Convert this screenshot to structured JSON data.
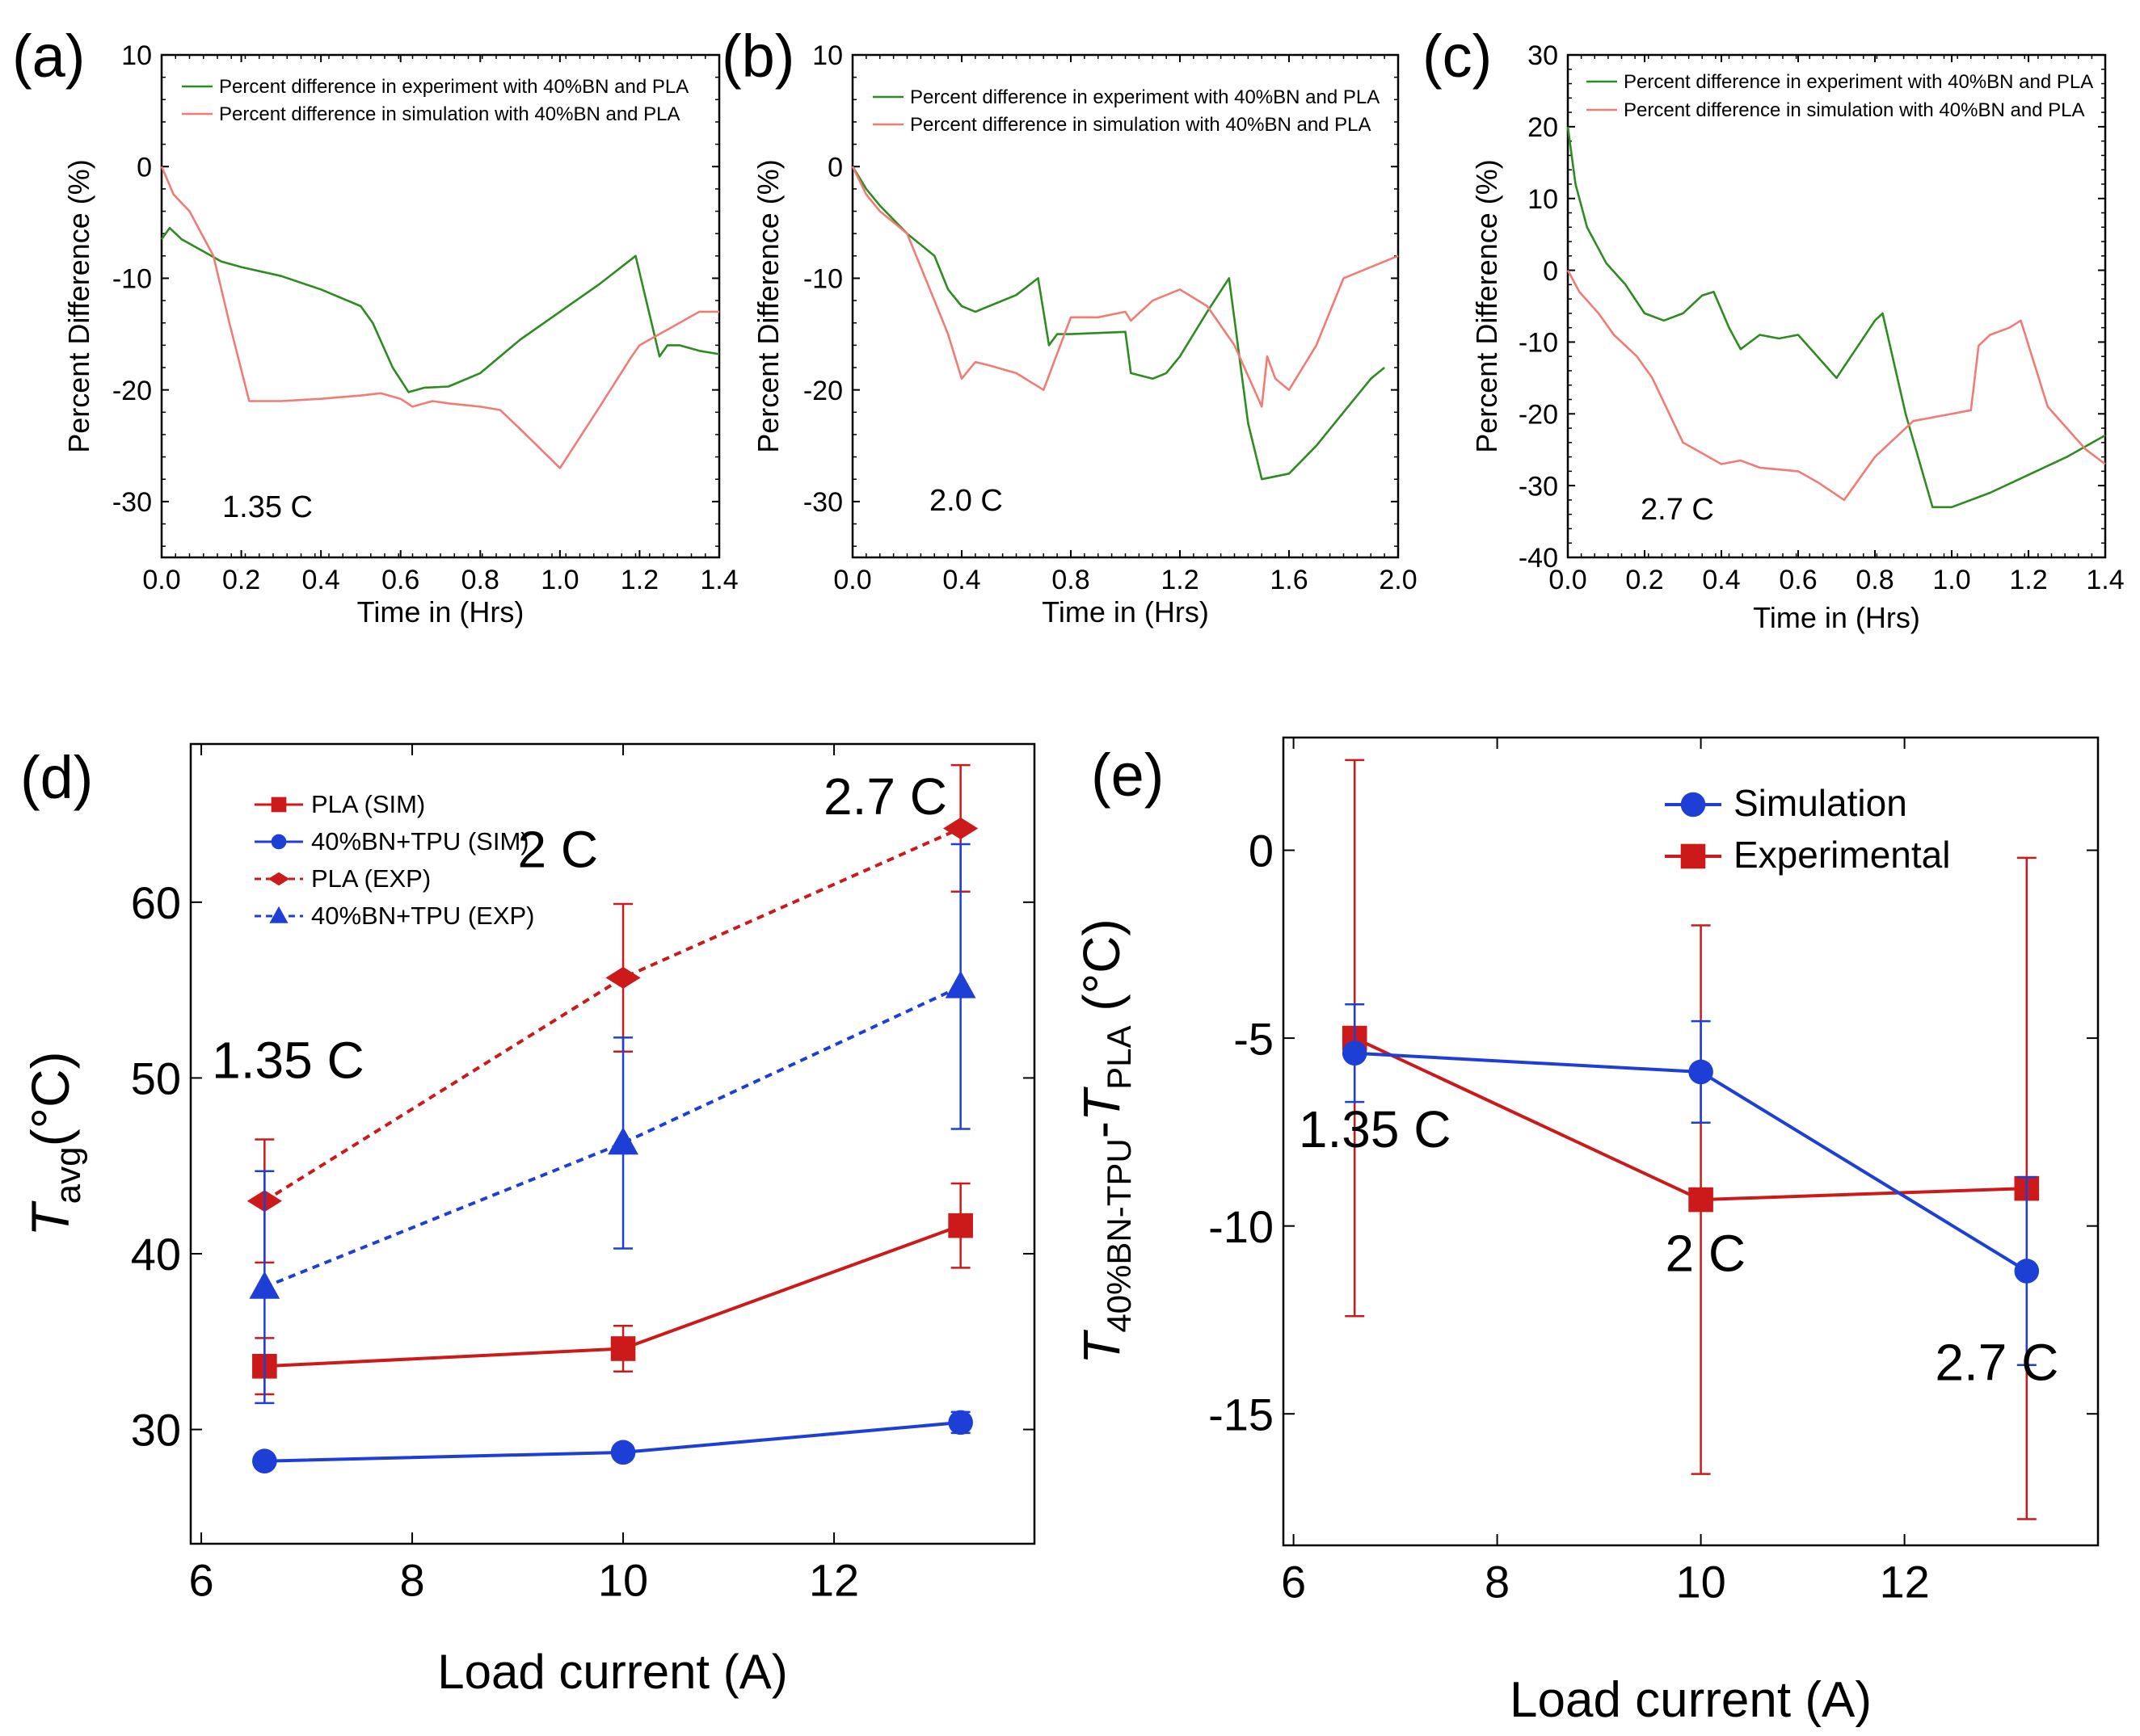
{
  "colors": {
    "green": "#2e8b22",
    "salmon": "#f07c76",
    "red": "#cc1a1a",
    "blue": "#1d3fd6",
    "axis": "#000000"
  },
  "chart_data": [
    {
      "id": "a",
      "panel_label": "(a)",
      "type": "line",
      "xlabel": "Time in (Hrs)",
      "ylabel": "Percent Difference (%)",
      "xlim": [
        0,
        1.4
      ],
      "ylim": [
        -35,
        10
      ],
      "xticks": [
        0.0,
        0.2,
        0.4,
        0.6,
        0.8,
        1.0,
        1.2,
        1.4
      ],
      "xtick_labels": [
        "0.0",
        "0.2",
        "0.4",
        "0.6",
        "0.8",
        "1.0",
        "1.2",
        "1.4"
      ],
      "yticks": [
        10,
        0,
        -10,
        -20,
        -30
      ],
      "ytick_labels": [
        "10",
        "0",
        "-10",
        "-20",
        "-30"
      ],
      "annotation": "1.35 C",
      "series": [
        {
          "name": "Percent difference in experiment with 40%BN and PLA",
          "color": "green",
          "x": [
            0.0,
            0.02,
            0.05,
            0.1,
            0.15,
            0.2,
            0.3,
            0.4,
            0.5,
            0.53,
            0.58,
            0.62,
            0.66,
            0.72,
            0.8,
            0.9,
            1.0,
            1.1,
            1.19,
            1.2,
            1.25,
            1.27,
            1.3,
            1.35,
            1.4
          ],
          "y": [
            -6.5,
            -5.5,
            -6.5,
            -7.5,
            -8.5,
            -9.0,
            -9.8,
            -11.0,
            -12.5,
            -14.0,
            -18.0,
            -20.2,
            -19.8,
            -19.7,
            -18.5,
            -15.5,
            -13.0,
            -10.5,
            -8.0,
            -9.5,
            -17.0,
            -16.0,
            -16.0,
            -16.5,
            -16.8
          ]
        },
        {
          "name": "Percent difference in simulation with 40%BN and PLA",
          "color": "salmon",
          "x": [
            0.0,
            0.03,
            0.07,
            0.1,
            0.13,
            0.17,
            0.22,
            0.3,
            0.4,
            0.5,
            0.55,
            0.6,
            0.63,
            0.68,
            0.72,
            0.8,
            0.85,
            0.9,
            1.0,
            1.1,
            1.18,
            1.2,
            1.3,
            1.35,
            1.4
          ],
          "y": [
            0.0,
            -2.5,
            -4.0,
            -6.0,
            -8.0,
            -14.0,
            -21.0,
            -21.0,
            -20.8,
            -20.5,
            -20.3,
            -20.8,
            -21.5,
            -21.0,
            -21.2,
            -21.5,
            -21.8,
            -23.5,
            -27.0,
            -21.5,
            -17.0,
            -16.0,
            -14.0,
            -13.0,
            -13.0
          ]
        }
      ]
    },
    {
      "id": "b",
      "panel_label": "(b)",
      "type": "line",
      "xlabel": "Time in (Hrs)",
      "ylabel": "Percent Difference (%)",
      "xlim": [
        0,
        2.0
      ],
      "ylim": [
        -35,
        10
      ],
      "xticks": [
        0.0,
        0.4,
        0.8,
        1.2,
        1.6,
        2.0
      ],
      "xtick_labels": [
        "0.0",
        "0.4",
        "0.8",
        "1.2",
        "1.6",
        "2.0"
      ],
      "yticks": [
        10,
        0,
        -10,
        -20,
        -30
      ],
      "ytick_labels": [
        "10",
        "0",
        "-10",
        "-20",
        "-30"
      ],
      "annotation": "2.0 C",
      "series": [
        {
          "name": "Percent difference in experiment with 40%BN and PLA",
          "color": "green",
          "x": [
            0.0,
            0.05,
            0.1,
            0.2,
            0.3,
            0.35,
            0.4,
            0.45,
            0.5,
            0.6,
            0.68,
            0.72,
            0.75,
            0.8,
            1.0,
            1.02,
            1.1,
            1.15,
            1.2,
            1.3,
            1.38,
            1.45,
            1.5,
            1.6,
            1.7,
            1.8,
            1.9,
            1.95
          ],
          "y": [
            0.0,
            -2.0,
            -3.5,
            -6.0,
            -8.0,
            -11.0,
            -12.5,
            -13.0,
            -12.5,
            -11.5,
            -10.0,
            -16.0,
            -15.0,
            -15.0,
            -14.8,
            -18.5,
            -19.0,
            -18.5,
            -17.0,
            -13.0,
            -10.0,
            -23.0,
            -28.0,
            -27.5,
            -25.0,
            -22.0,
            -19.0,
            -18.0
          ]
        },
        {
          "name": "Percent difference in simulation with 40%BN and PLA",
          "color": "salmon",
          "x": [
            0.0,
            0.05,
            0.1,
            0.15,
            0.2,
            0.3,
            0.35,
            0.4,
            0.45,
            0.5,
            0.6,
            0.7,
            0.8,
            0.9,
            1.0,
            1.02,
            1.1,
            1.2,
            1.3,
            1.4,
            1.5,
            1.52,
            1.55,
            1.6,
            1.7,
            1.8,
            1.9,
            2.0
          ],
          "y": [
            0.0,
            -2.5,
            -4.0,
            -5.0,
            -6.0,
            -12.0,
            -15.0,
            -19.0,
            -17.5,
            -17.8,
            -18.5,
            -20.0,
            -13.5,
            -13.5,
            -13.0,
            -13.8,
            -12.0,
            -11.0,
            -12.5,
            -16.0,
            -21.5,
            -17.0,
            -19.0,
            -20.0,
            -16.0,
            -10.0,
            -9.0,
            -8.0
          ]
        }
      ]
    },
    {
      "id": "c",
      "panel_label": "(c)",
      "type": "line",
      "xlabel": "Time in (Hrs)",
      "ylabel": "Percent Difference (%)",
      "xlim": [
        0,
        1.4
      ],
      "ylim": [
        -40,
        30
      ],
      "xticks": [
        0.0,
        0.2,
        0.4,
        0.6,
        0.8,
        1.0,
        1.2,
        1.4
      ],
      "xtick_labels": [
        "0.0",
        "0.2",
        "0.4",
        "0.6",
        "0.8",
        "1.0",
        "1.2",
        "1.4"
      ],
      "yticks": [
        30,
        20,
        10,
        0,
        -10,
        -20,
        -30,
        -40
      ],
      "ytick_labels": [
        "30",
        "20",
        "10",
        "0",
        "-10",
        "-20",
        "-30",
        "-40"
      ],
      "annotation": "2.7 C",
      "series": [
        {
          "name": "Percent difference in experiment with 40%BN and PLA",
          "color": "green",
          "x": [
            0.0,
            0.02,
            0.05,
            0.1,
            0.15,
            0.2,
            0.25,
            0.3,
            0.35,
            0.38,
            0.42,
            0.45,
            0.5,
            0.55,
            0.6,
            0.65,
            0.7,
            0.75,
            0.8,
            0.82,
            0.88,
            0.95,
            1.0,
            1.1,
            1.2,
            1.3,
            1.4
          ],
          "y": [
            20.0,
            12.0,
            6.0,
            1.0,
            -2.0,
            -6.0,
            -7.0,
            -6.0,
            -3.5,
            -3.0,
            -8.0,
            -11.0,
            -9.0,
            -9.5,
            -9.0,
            -12.0,
            -15.0,
            -11.0,
            -7.0,
            -6.0,
            -20.0,
            -33.0,
            -33.0,
            -31.0,
            -28.5,
            -26.0,
            -23.0
          ]
        },
        {
          "name": "Percent difference in simulation with 40%BN and PLA",
          "color": "salmon",
          "x": [
            0.0,
            0.03,
            0.08,
            0.12,
            0.18,
            0.22,
            0.3,
            0.4,
            0.45,
            0.5,
            0.6,
            0.65,
            0.72,
            0.8,
            0.9,
            1.0,
            1.05,
            1.07,
            1.1,
            1.15,
            1.18,
            1.25,
            1.3,
            1.35,
            1.4
          ],
          "y": [
            0.0,
            -3.0,
            -6.0,
            -9.0,
            -12.0,
            -15.0,
            -24.0,
            -27.0,
            -26.5,
            -27.5,
            -28.0,
            -29.5,
            -32.0,
            -26.0,
            -21.0,
            -20.0,
            -19.5,
            -10.5,
            -9.0,
            -8.0,
            -7.0,
            -19.0,
            -22.0,
            -25.0,
            -27.0
          ]
        }
      ]
    },
    {
      "id": "d",
      "panel_label": "(d)",
      "type": "line",
      "xlabel": "Load current (A)",
      "ylabel_main": "T",
      "ylabel_sub": "avg",
      "ylabel_rest": "(°C)",
      "xlim": [
        5.9,
        13.9
      ],
      "ylim": [
        23.5,
        69
      ],
      "xticks": [
        6,
        8,
        10,
        12
      ],
      "xtick_labels": [
        "6",
        "8",
        "10",
        "12"
      ],
      "yticks": [
        30,
        40,
        50,
        60
      ],
      "ytick_labels": [
        "30",
        "40",
        "50",
        "60"
      ],
      "annotations": [
        {
          "text": "1.35 C",
          "x": 6.1,
          "y": 50
        },
        {
          "text": "2 C",
          "x": 9.0,
          "y": 62
        },
        {
          "text": "2.7 C",
          "x": 11.9,
          "y": 65
        }
      ],
      "series": [
        {
          "name": "PLA (SIM)",
          "color": "red",
          "dash": false,
          "marker": "square",
          "x": [
            6.6,
            10.0,
            13.2
          ],
          "y": [
            33.6,
            34.6,
            41.6
          ],
          "err": [
            1.6,
            1.3,
            2.4
          ]
        },
        {
          "name": "40%BN+TPU (SIM)",
          "color": "blue",
          "dash": false,
          "marker": "circle",
          "x": [
            6.6,
            10.0,
            13.2
          ],
          "y": [
            28.2,
            28.7,
            30.4
          ],
          "err": [
            0,
            0,
            0.6
          ]
        },
        {
          "name": "PLA (EXP)",
          "color": "red",
          "dash": true,
          "marker": "diamond",
          "x": [
            6.6,
            10.0,
            13.2
          ],
          "y": [
            43.0,
            55.7,
            64.2
          ],
          "err": [
            3.5,
            4.2,
            3.6
          ]
        },
        {
          "name": "40%BN+TPU (EXP)",
          "color": "blue",
          "dash": true,
          "marker": "triangle",
          "x": [
            6.6,
            10.0,
            13.2
          ],
          "y": [
            38.1,
            46.3,
            55.2
          ],
          "err": [
            6.6,
            6.0,
            8.1
          ]
        }
      ]
    },
    {
      "id": "e",
      "panel_label": "(e)",
      "type": "line",
      "xlabel": "Load current (A)",
      "ylabel_main": "T",
      "ylabel_sub1": "40%BN-TPU",
      "ylabel_mid": "-",
      "ylabel_main2": "T",
      "ylabel_sub2": "PLA",
      "ylabel_rest": " (°C)",
      "xlim": [
        5.9,
        13.9
      ],
      "ylim": [
        -18.5,
        3.0
      ],
      "xticks": [
        6,
        8,
        10,
        12
      ],
      "xtick_labels": [
        "6",
        "8",
        "10",
        "12"
      ],
      "yticks": [
        0,
        -5,
        -10,
        -15
      ],
      "ytick_labels": [
        "0",
        "-5",
        "-10",
        "-15"
      ],
      "annotations": [
        {
          "text": "1.35 C",
          "x": 6.05,
          "y": -7.9
        },
        {
          "text": "2 C",
          "x": 9.65,
          "y": -11.2
        },
        {
          "text": "2.7 C",
          "x": 12.3,
          "y": -14.1
        }
      ],
      "series": [
        {
          "name": "Simulation",
          "color": "blue",
          "marker": "circle",
          "x": [
            6.6,
            10.0,
            13.2
          ],
          "y": [
            -5.4,
            -5.9,
            -11.2
          ],
          "err": [
            1.3,
            1.35,
            2.5
          ]
        },
        {
          "name": "Experimental",
          "color": "red",
          "marker": "square",
          "x": [
            6.6,
            10.0,
            13.2
          ],
          "y": [
            -5.0,
            -9.3,
            -9.0
          ],
          "err": [
            7.4,
            7.3,
            8.8
          ]
        }
      ]
    }
  ]
}
